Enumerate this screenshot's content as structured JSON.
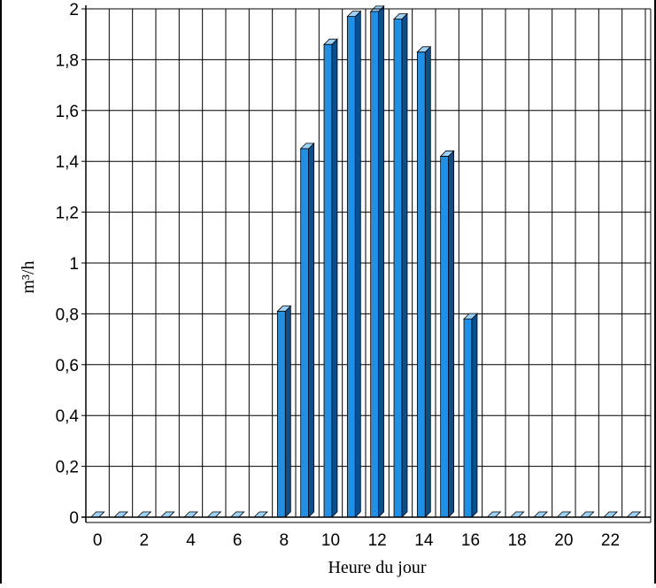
{
  "chart_data": {
    "type": "bar",
    "title": "",
    "xlabel": "Heure du jour",
    "ylabel": "m³/h",
    "ylim": [
      0,
      2
    ],
    "grid": true,
    "legend": "none",
    "categories": [
      0,
      1,
      2,
      3,
      4,
      5,
      6,
      7,
      8,
      9,
      10,
      11,
      12,
      13,
      14,
      15,
      16,
      17,
      18,
      19,
      20,
      21,
      22,
      23
    ],
    "x_tick_labels": [
      "0",
      "2",
      "4",
      "6",
      "8",
      "10",
      "12",
      "14",
      "16",
      "18",
      "20",
      "22"
    ],
    "y_tick_labels": [
      "0",
      "0,2",
      "0,4",
      "0,6",
      "0,8",
      "1",
      "1,2",
      "1,4",
      "1,6",
      "1,8",
      "2"
    ],
    "values": [
      0,
      0,
      0,
      0,
      0,
      0,
      0,
      0,
      0.81,
      1.45,
      1.86,
      1.97,
      1.99,
      1.96,
      1.83,
      1.42,
      0.78,
      0,
      0,
      0,
      0,
      0,
      0,
      0
    ],
    "colors": {
      "bar_front": "#1e90e6",
      "bar_side": "#0a4f8c",
      "bar_top": "#9cd2fa",
      "grid": "#000000",
      "background": "#ffffff"
    }
  }
}
